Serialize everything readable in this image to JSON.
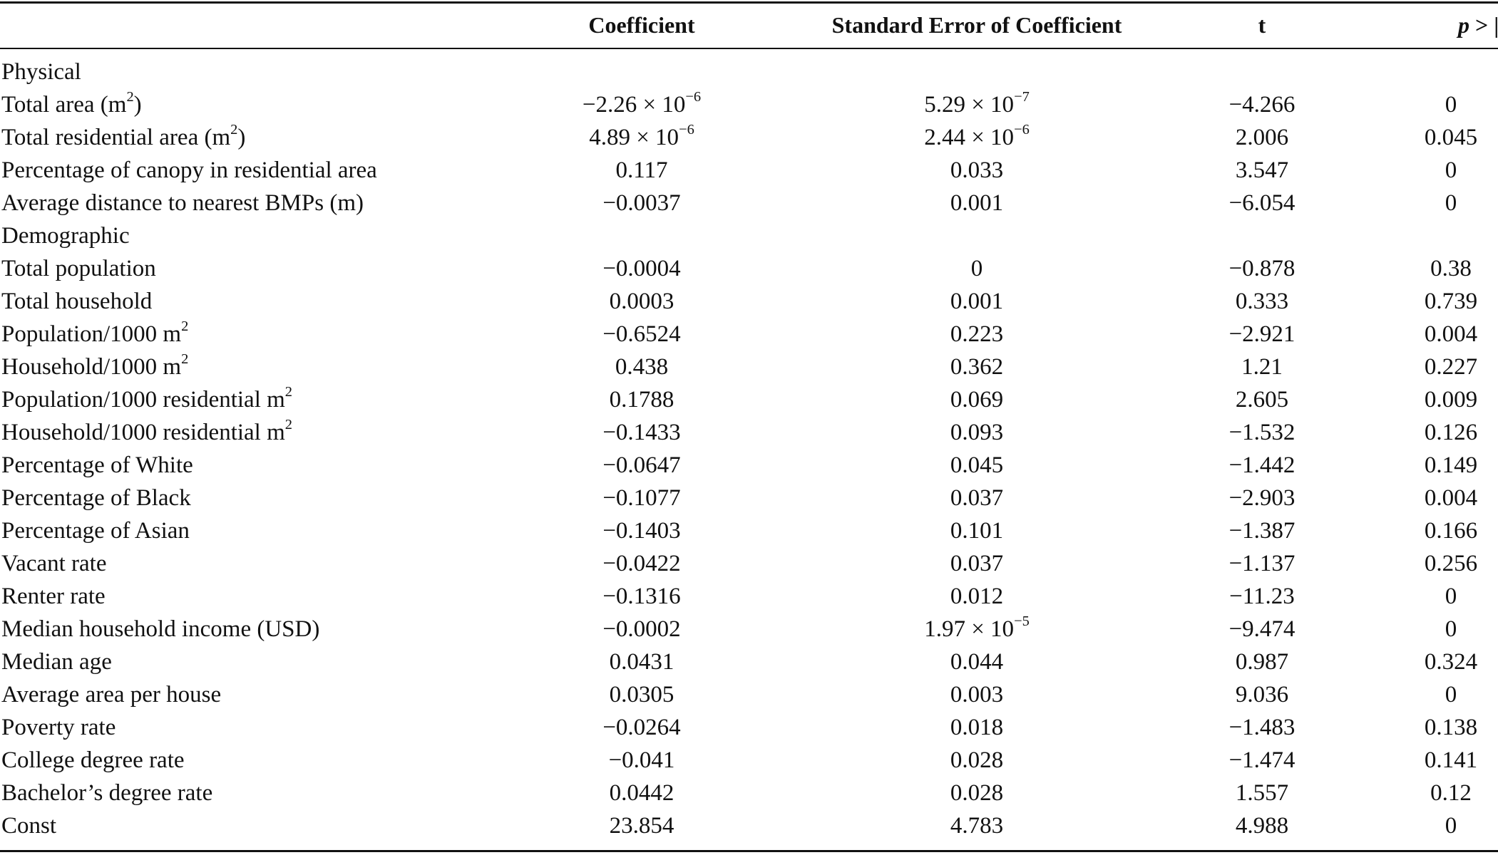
{
  "header": {
    "col_coef": "Coefficient",
    "col_se": "Standard Error of Coefficient",
    "col_t": "t",
    "col_p_prefix": "p",
    "col_p_suffix": " > |t|"
  },
  "rows": [
    {
      "type": "section",
      "label": "Physical"
    },
    {
      "type": "data",
      "label": "Total area (m",
      "label_sup": "2",
      "label_tail": ")",
      "coef": "−2.26 × 10",
      "coef_sup": "−6",
      "se": "5.29 × 10",
      "se_sup": "−7",
      "t": "−4.266",
      "p": "0"
    },
    {
      "type": "data",
      "label": "Total residential area (m",
      "label_sup": "2",
      "label_tail": ")",
      "coef": "4.89 × 10",
      "coef_sup": "−6",
      "se": "2.44 × 10",
      "se_sup": "−6",
      "t": "2.006",
      "p": "0.045"
    },
    {
      "type": "data",
      "label": "Percentage of canopy in residential area",
      "coef": "0.117",
      "se": "0.033",
      "t": "3.547",
      "p": "0"
    },
    {
      "type": "data",
      "label": "Average distance to nearest BMPs (m)",
      "coef": "−0.0037",
      "se": "0.001",
      "t": "−6.054",
      "p": "0"
    },
    {
      "type": "section",
      "label": "Demographic"
    },
    {
      "type": "data",
      "label": "Total population",
      "coef": "−0.0004",
      "se": "0",
      "t": "−0.878",
      "p": "0.38"
    },
    {
      "type": "data",
      "label": "Total household",
      "coef": "0.0003",
      "se": "0.001",
      "t": "0.333",
      "p": "0.739"
    },
    {
      "type": "data",
      "label": "Population/1000 m",
      "label_sup": "2",
      "coef": "−0.6524",
      "se": "0.223",
      "t": "−2.921",
      "p": "0.004"
    },
    {
      "type": "data",
      "label": "Household/1000 m",
      "label_sup": "2",
      "coef": "0.438",
      "se": "0.362",
      "t": "1.21",
      "p": "0.227"
    },
    {
      "type": "data",
      "label": "Population/1000 residential m",
      "label_sup": "2",
      "coef": "0.1788",
      "se": "0.069",
      "t": "2.605",
      "p": "0.009"
    },
    {
      "type": "data",
      "label": "Household/1000 residential m",
      "label_sup": "2",
      "coef": "−0.1433",
      "se": "0.093",
      "t": "−1.532",
      "p": "0.126"
    },
    {
      "type": "data",
      "label": "Percentage of White",
      "coef": "−0.0647",
      "se": "0.045",
      "t": "−1.442",
      "p": "0.149"
    },
    {
      "type": "data",
      "label": "Percentage of Black",
      "coef": "−0.1077",
      "se": "0.037",
      "t": "−2.903",
      "p": "0.004"
    },
    {
      "type": "data",
      "label": "Percentage of Asian",
      "coef": "−0.1403",
      "se": "0.101",
      "t": "−1.387",
      "p": "0.166"
    },
    {
      "type": "data",
      "label": "Vacant rate",
      "coef": "−0.0422",
      "se": "0.037",
      "t": "−1.137",
      "p": "0.256"
    },
    {
      "type": "data",
      "label": "Renter rate",
      "coef": "−0.1316",
      "se": "0.012",
      "t": "−11.23",
      "p": "0"
    },
    {
      "type": "data",
      "label": "Median household income (USD)",
      "coef": "−0.0002",
      "se": "1.97 × 10",
      "se_sup": "−5",
      "t": "−9.474",
      "p": "0"
    },
    {
      "type": "data",
      "label": "Median age",
      "coef": "0.0431",
      "se": "0.044",
      "t": "0.987",
      "p": "0.324"
    },
    {
      "type": "data",
      "label": "Average area per house",
      "coef": "0.0305",
      "se": "0.003",
      "t": "9.036",
      "p": "0"
    },
    {
      "type": "data",
      "label": "Poverty rate",
      "coef": "−0.0264",
      "se": "0.018",
      "t": "−1.483",
      "p": "0.138"
    },
    {
      "type": "data",
      "label": "College degree rate",
      "coef": "−0.041",
      "se": "0.028",
      "t": "−1.474",
      "p": "0.141"
    },
    {
      "type": "data",
      "label": "Bachelor’s degree rate",
      "coef": "0.0442",
      "se": "0.028",
      "t": "1.557",
      "p": "0.12"
    },
    {
      "type": "data",
      "label": "Const",
      "coef": "23.854",
      "se": "4.783",
      "t": "4.988",
      "p": "0"
    }
  ]
}
